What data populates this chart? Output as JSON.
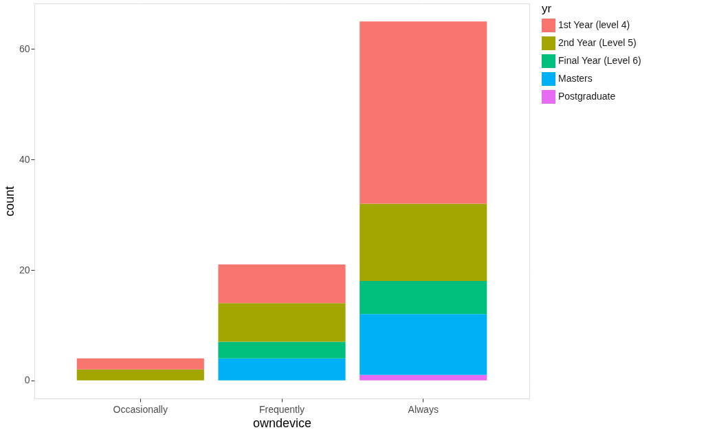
{
  "chart_data": {
    "type": "bar",
    "stacked": true,
    "xlabel": "owndevice",
    "ylabel": "count",
    "legend_title": "yr",
    "legend": "right",
    "grid": true,
    "categories": [
      "Occasionally",
      "Frequently",
      "Always"
    ],
    "series": [
      {
        "name": "Postgraduate",
        "color": "#e76bf3",
        "values": [
          null,
          null,
          1
        ]
      },
      {
        "name": "Masters",
        "color": "#00b0f6",
        "values": [
          null,
          4,
          11
        ]
      },
      {
        "name": "Final Year (Level 6)",
        "color": "#00bf7d",
        "values": [
          null,
          3,
          6
        ]
      },
      {
        "name": "2nd Year (Level 5)",
        "color": "#a3a500",
        "values": [
          2,
          7,
          14
        ]
      },
      {
        "name": "1st Year (level 4)",
        "color": "#f8766d",
        "values": [
          2,
          7,
          33
        ]
      }
    ],
    "ylim": [
      -3.25,
      68.25
    ],
    "yticks": [
      0,
      20,
      40,
      60
    ]
  }
}
